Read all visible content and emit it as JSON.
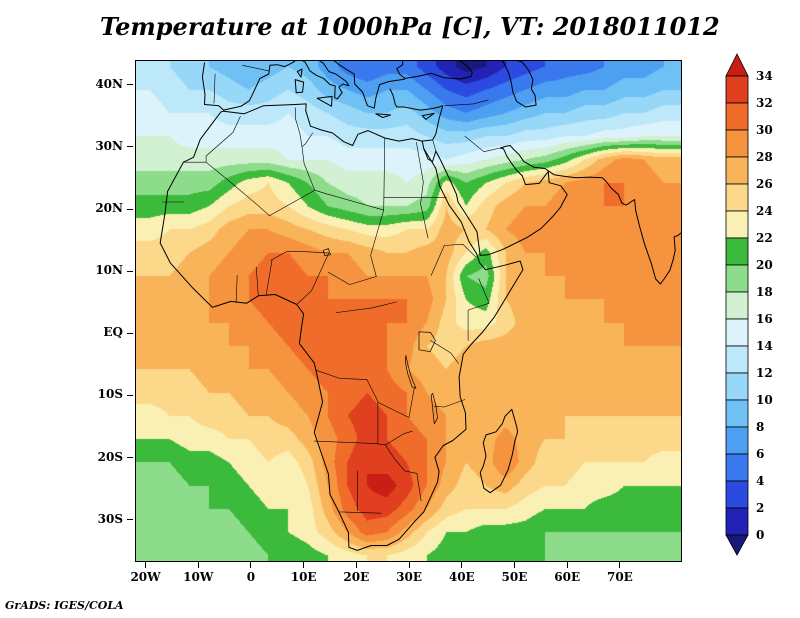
{
  "title": "Temperature at 1000hPa [C], VT: 2018011012",
  "credit": "GrADS: IGES/COLA",
  "chart_data": {
    "type": "heatmap",
    "title": "Temperature at 1000hPa [C], VT: 2018011012",
    "variable": "Temperature at 1000hPa",
    "units": "C",
    "valid_time": "2018011012",
    "x_tick_labels": [
      "20W",
      "10W",
      "0",
      "10E",
      "20E",
      "30E",
      "40E",
      "50E",
      "60E",
      "70E"
    ],
    "x_tick_lons": [
      -20,
      -10,
      0,
      10,
      20,
      30,
      40,
      50,
      60,
      70
    ],
    "y_tick_labels": [
      "40N",
      "30N",
      "20N",
      "10N",
      "EQ",
      "10S",
      "20S",
      "30S"
    ],
    "y_tick_lats": [
      40,
      30,
      20,
      10,
      0,
      -10,
      -20,
      -30
    ],
    "lon_range": [
      -22,
      81.4
    ],
    "lat_range": [
      -36.5,
      44
    ],
    "grid_on": false,
    "legend_position": "right",
    "colorbar": {
      "levels": [
        0,
        2,
        4,
        6,
        8,
        10,
        12,
        14,
        16,
        18,
        20,
        22,
        24,
        26,
        28,
        30,
        32,
        34
      ],
      "labels_top_to_bottom": [
        "34",
        "32",
        "30",
        "28",
        "26",
        "24",
        "22",
        "20",
        "18",
        "16",
        "14",
        "12",
        "10",
        "8",
        "6",
        "4",
        "2",
        "0"
      ],
      "colors_low_to_high": [
        "#18187e",
        "#2222b4",
        "#2b4be0",
        "#3a78ee",
        "#4d9ff2",
        "#6fc0f5",
        "#97d7f7",
        "#bce8fa",
        "#dcf3fb",
        "#d2f0d2",
        "#8cdc8c",
        "#3cba3c",
        "#faf0b4",
        "#fbd88a",
        "#f9b45a",
        "#f6933f",
        "#ef6c2a",
        "#e04020",
        "#c81e14"
      ]
    },
    "grid": {
      "lon_min": -25,
      "lon_max": 80,
      "lat_max": 45,
      "lat_min": -37.5,
      "values": [
        [
          13,
          13,
          12,
          11,
          10,
          9,
          8,
          9,
          10,
          9,
          7,
          5,
          4,
          5,
          5,
          3,
          1,
          -1,
          0,
          2,
          3,
          4,
          5,
          5,
          6,
          7,
          7,
          8
        ],
        [
          14,
          14,
          13,
          12,
          12,
          11,
          10,
          11,
          12,
          11,
          9,
          8,
          7,
          8,
          8,
          6,
          4,
          3,
          4,
          5,
          6,
          7,
          7,
          8,
          8,
          9,
          9,
          10
        ],
        [
          15,
          15,
          14,
          14,
          14,
          13,
          13,
          13,
          14,
          13,
          12,
          11,
          10,
          10,
          11,
          9,
          7,
          6,
          7,
          8,
          9,
          10,
          10,
          11,
          11,
          12,
          12,
          13
        ],
        [
          16,
          16,
          16,
          15,
          15,
          15,
          15,
          15,
          15,
          14,
          14,
          13,
          13,
          13,
          13,
          12,
          11,
          11,
          12,
          12,
          13,
          13,
          14,
          14,
          15,
          15,
          16,
          16
        ],
        [
          17,
          17,
          17,
          17,
          17,
          17,
          17,
          17,
          16,
          16,
          16,
          15,
          15,
          15,
          15,
          15,
          14,
          15,
          16,
          17,
          18,
          19,
          21,
          24,
          27,
          29,
          28,
          27
        ],
        [
          19,
          19,
          19,
          19,
          19,
          21,
          23,
          24,
          22,
          20,
          18,
          17,
          17,
          17,
          16,
          17,
          23,
          20,
          22,
          24,
          26,
          27,
          28,
          29,
          30,
          30,
          29,
          28
        ],
        [
          21,
          21,
          21,
          21,
          22,
          24,
          25,
          25,
          24,
          22,
          20,
          19,
          18,
          18,
          18,
          19,
          26,
          22,
          25,
          27,
          28,
          28,
          29,
          30,
          30,
          30,
          29,
          29
        ],
        [
          23,
          23,
          24,
          24,
          25,
          27,
          28,
          28,
          27,
          26,
          25,
          24,
          23,
          23,
          24,
          24,
          27,
          26,
          26,
          28,
          29,
          29,
          29,
          29,
          30,
          29,
          29,
          28
        ],
        [
          25,
          25,
          25,
          26,
          27,
          28,
          29,
          30,
          30,
          29,
          28,
          28,
          27,
          26,
          26,
          27,
          27,
          24,
          21,
          26,
          28,
          28,
          28,
          28,
          28,
          28,
          28,
          28
        ],
        [
          26,
          26,
          26,
          27,
          28,
          29,
          30,
          31,
          31,
          30,
          30,
          29,
          28,
          28,
          28,
          28,
          26,
          20,
          19,
          26,
          27,
          28,
          28,
          28,
          28,
          28,
          28,
          28
        ],
        [
          26,
          26,
          27,
          27,
          28,
          29,
          30,
          31,
          32,
          31,
          30,
          30,
          30,
          30,
          30,
          29,
          26,
          22,
          21,
          26,
          27,
          27,
          28,
          28,
          28,
          28,
          28,
          28
        ],
        [
          27,
          27,
          27,
          27,
          28,
          28,
          29,
          30,
          31,
          32,
          32,
          31,
          31,
          30,
          30,
          28,
          25,
          23,
          23,
          25,
          27,
          27,
          27,
          27,
          28,
          28,
          28,
          28
        ],
        [
          27,
          27,
          27,
          27,
          27,
          28,
          28,
          29,
          30,
          31,
          32,
          32,
          31,
          30,
          29,
          26,
          25,
          26,
          27,
          27,
          27,
          27,
          27,
          27,
          27,
          28,
          28,
          28
        ],
        [
          26,
          26,
          26,
          26,
          27,
          27,
          28,
          28,
          29,
          30,
          31,
          32,
          32,
          30,
          28,
          27,
          26,
          27,
          27,
          27,
          27,
          27,
          27,
          27,
          27,
          27,
          27,
          27
        ],
        [
          25,
          25,
          25,
          25,
          26,
          26,
          27,
          27,
          28,
          29,
          30,
          31,
          32,
          31,
          30,
          28,
          27,
          27,
          27,
          26,
          26,
          26,
          26,
          26,
          27,
          27,
          27,
          27
        ],
        [
          23,
          23,
          24,
          24,
          25,
          25,
          26,
          26,
          27,
          28,
          30,
          32,
          33,
          32,
          30,
          29,
          28,
          27,
          26,
          27,
          26,
          26,
          26,
          26,
          26,
          26,
          26,
          26
        ],
        [
          22,
          22,
          22,
          23,
          23,
          24,
          24,
          25,
          25,
          27,
          29,
          31,
          33,
          32,
          31,
          30,
          28,
          27,
          27,
          29,
          27,
          26,
          26,
          25,
          25,
          25,
          25,
          25
        ],
        [
          20,
          20,
          20,
          21,
          21,
          22,
          23,
          24,
          23,
          25,
          29,
          32,
          34,
          33,
          32,
          30,
          28,
          26,
          27,
          30,
          27,
          25,
          25,
          24,
          24,
          24,
          24,
          23
        ],
        [
          19,
          19,
          19,
          20,
          20,
          21,
          22,
          23,
          22,
          24,
          28,
          32,
          34,
          35,
          33,
          30,
          27,
          25,
          26,
          27,
          25,
          24,
          24,
          23,
          23,
          22,
          22,
          22
        ],
        [
          19,
          19,
          19,
          19,
          20,
          20,
          21,
          22,
          22,
          23,
          27,
          31,
          33,
          33,
          31,
          28,
          25,
          24,
          24,
          24,
          23,
          22,
          22,
          22,
          21,
          21,
          21,
          21
        ],
        [
          18,
          18,
          18,
          19,
          19,
          19,
          20,
          21,
          22,
          23,
          25,
          28,
          31,
          30,
          27,
          24,
          22,
          22,
          21,
          21,
          21,
          20,
          20,
          20,
          20,
          20,
          20,
          20
        ],
        [
          18,
          18,
          18,
          18,
          19,
          19,
          19,
          20,
          20,
          21,
          22,
          23,
          24,
          24,
          23,
          22,
          21,
          21,
          20,
          20,
          20,
          20,
          19,
          19,
          19,
          19,
          19,
          19
        ]
      ]
    }
  }
}
